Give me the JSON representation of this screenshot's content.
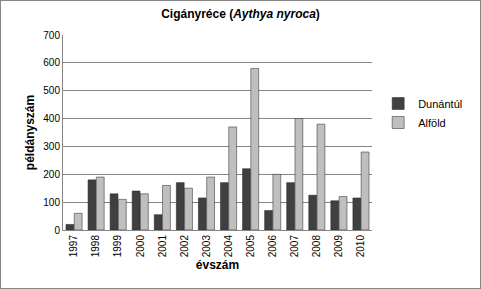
{
  "chart_data": {
    "type": "bar",
    "title": "Cigányréce (Aythya nyroca)",
    "x_label": "évszám",
    "y_label": "példányszám",
    "categories": [
      "1997",
      "1998",
      "1999",
      "2000",
      "2001",
      "2002",
      "2003",
      "2004",
      "2005",
      "2006",
      "2007",
      "2008",
      "2009",
      "2010"
    ],
    "series": [
      {
        "name": "Dunántúl",
        "color": "#404040",
        "values": [
          20,
          180,
          130,
          140,
          55,
          170,
          115,
          170,
          220,
          70,
          170,
          125,
          105,
          115
        ]
      },
      {
        "name": "Alföld",
        "color": "#bfbfbf",
        "values": [
          60,
          190,
          110,
          130,
          160,
          150,
          190,
          370,
          580,
          200,
          400,
          380,
          120,
          280
        ]
      }
    ],
    "ylim": [
      0,
      700
    ],
    "yticks": [
      0,
      100,
      200,
      300,
      400,
      500,
      600,
      700
    ],
    "grid": true,
    "legend": "right"
  }
}
